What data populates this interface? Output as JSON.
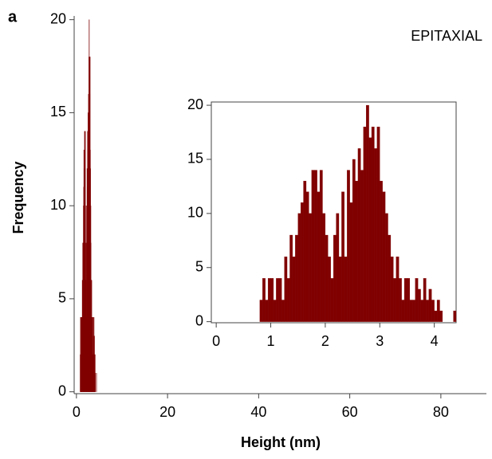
{
  "chart_data": [
    {
      "type": "histogram",
      "panel_label": "a",
      "annotation": "EPITAXIAL",
      "xlabel": "Height (nm)",
      "ylabel": "Frequency",
      "color": "#800000",
      "bins": [
        0.8,
        0.85,
        0.9,
        0.95,
        1.0,
        1.05,
        1.1,
        1.15,
        1.2,
        1.25,
        1.3,
        1.35,
        1.4,
        1.45,
        1.5,
        1.55,
        1.6,
        1.65,
        1.7,
        1.75,
        1.8,
        1.85,
        1.9,
        1.95,
        2.0,
        2.05,
        2.1,
        2.15,
        2.2,
        2.25,
        2.3,
        2.35,
        2.4,
        2.45,
        2.5,
        2.55,
        2.6,
        2.65,
        2.7,
        2.75,
        2.8,
        2.85,
        2.9,
        2.95,
        3.0,
        3.05,
        3.1,
        3.15,
        3.2,
        3.25,
        3.3,
        3.35,
        3.4,
        3.45,
        3.5,
        3.55,
        3.6,
        3.65,
        3.7,
        3.75,
        3.8,
        3.85,
        3.9,
        3.95,
        4.0,
        4.05,
        4.1,
        4.15,
        4.2,
        4.25,
        4.3,
        4.35,
        4.4
      ],
      "values": [
        2,
        4,
        2,
        4,
        4,
        2,
        4,
        4,
        2,
        6,
        4,
        8,
        6,
        8,
        10,
        11,
        13,
        12,
        10,
        14,
        14,
        12,
        14,
        10,
        8,
        6,
        4,
        8,
        10,
        6,
        12,
        6,
        14,
        11,
        15,
        13,
        16,
        14,
        18,
        20,
        17,
        18,
        16,
        18,
        13,
        12,
        10,
        8,
        6,
        4,
        6,
        4,
        2,
        4,
        4,
        2,
        2,
        4,
        3,
        2,
        4,
        2,
        3,
        2,
        1,
        2,
        1,
        0,
        0,
        0,
        0,
        1
      ],
      "xlim": [
        -0.5,
        90
      ],
      "ylim": [
        -0.1,
        20.2
      ],
      "xticks": [
        0,
        20,
        40,
        60,
        80
      ],
      "yticks": [
        0,
        5,
        10,
        15,
        20
      ]
    },
    {
      "type": "histogram",
      "color": "#800000",
      "bins": [
        0.8,
        0.85,
        0.9,
        0.95,
        1.0,
        1.05,
        1.1,
        1.15,
        1.2,
        1.25,
        1.3,
        1.35,
        1.4,
        1.45,
        1.5,
        1.55,
        1.6,
        1.65,
        1.7,
        1.75,
        1.8,
        1.85,
        1.9,
        1.95,
        2.0,
        2.05,
        2.1,
        2.15,
        2.2,
        2.25,
        2.3,
        2.35,
        2.4,
        2.45,
        2.5,
        2.55,
        2.6,
        2.65,
        2.7,
        2.75,
        2.8,
        2.85,
        2.9,
        2.95,
        3.0,
        3.05,
        3.1,
        3.15,
        3.2,
        3.25,
        3.3,
        3.35,
        3.4,
        3.45,
        3.5,
        3.55,
        3.6,
        3.65,
        3.7,
        3.75,
        3.8,
        3.85,
        3.9,
        3.95,
        4.0,
        4.05,
        4.1,
        4.15,
        4.2,
        4.25,
        4.3,
        4.35,
        4.4
      ],
      "values": [
        2,
        4,
        2,
        4,
        4,
        2,
        4,
        4,
        2,
        6,
        4,
        8,
        6,
        8,
        10,
        11,
        13,
        12,
        10,
        14,
        14,
        12,
        14,
        10,
        8,
        6,
        4,
        8,
        10,
        6,
        12,
        6,
        14,
        11,
        15,
        13,
        16,
        14,
        18,
        20,
        17,
        18,
        16,
        18,
        13,
        12,
        10,
        8,
        6,
        4,
        6,
        4,
        2,
        4,
        4,
        2,
        2,
        4,
        3,
        2,
        4,
        2,
        3,
        2,
        1,
        2,
        1,
        0,
        0,
        0,
        0,
        1
      ],
      "xlim": [
        -0.09,
        4.4
      ],
      "ylim": [
        -0.1,
        20.3
      ],
      "xticks": [
        0,
        1,
        2,
        3,
        4
      ],
      "yticks": [
        0,
        5,
        10,
        15,
        20
      ],
      "box": true
    }
  ]
}
